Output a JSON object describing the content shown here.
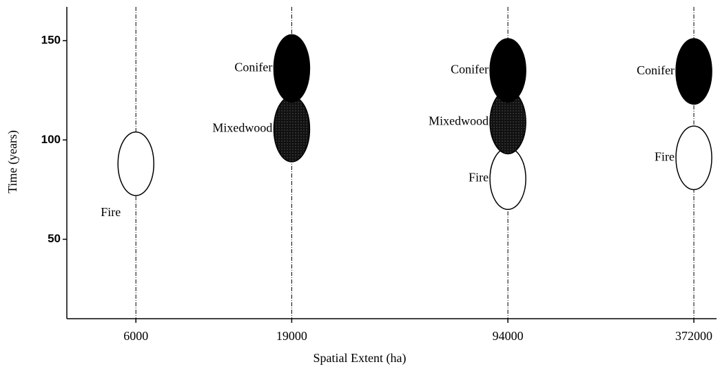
{
  "chart_data": {
    "type": "range-ellipse",
    "x_label": "Spatial Extent (ha)",
    "y_label": "Time (years)",
    "x": [
      6000,
      19000,
      94000,
      372000
    ],
    "xscale": "log",
    "xlim": [
      3600,
      440000
    ],
    "xticks": [
      6000,
      19000,
      94000,
      372000
    ],
    "ylim": [
      10,
      167
    ],
    "yticks": [
      50,
      100,
      150
    ],
    "grid": true,
    "series": [
      {
        "name": "Fire",
        "color": "#ffffff",
        "low": [
          72,
          null,
          65,
          75
        ],
        "high": [
          104,
          null,
          96,
          107
        ]
      },
      {
        "name": "Mixedwood",
        "color": "#1e1e1e",
        "low": [
          null,
          89,
          93,
          null
        ],
        "high": [
          null,
          122,
          125,
          null
        ]
      },
      {
        "name": "Conifer",
        "color": "#000000",
        "low": [
          null,
          119,
          119,
          118
        ],
        "high": [
          null,
          153,
          151,
          151
        ]
      }
    ]
  }
}
